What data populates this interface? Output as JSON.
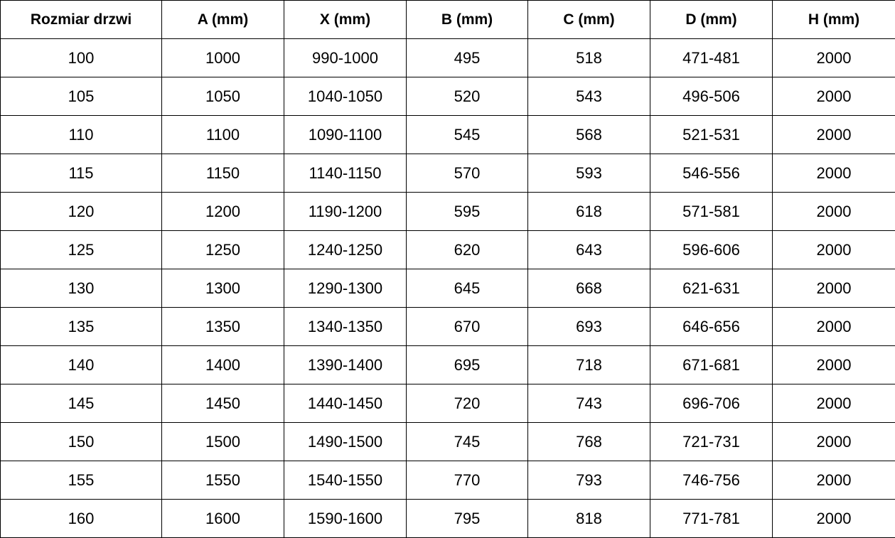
{
  "table": {
    "headers": [
      "Rozmiar drzwi",
      "A (mm)",
      "X (mm)",
      "B (mm)",
      "C (mm)",
      "D (mm)",
      "H (mm)"
    ],
    "rows": [
      [
        "100",
        "1000",
        "990-1000",
        "495",
        "518",
        "471-481",
        "2000"
      ],
      [
        "105",
        "1050",
        "1040-1050",
        "520",
        "543",
        "496-506",
        "2000"
      ],
      [
        "110",
        "1100",
        "1090-1100",
        "545",
        "568",
        "521-531",
        "2000"
      ],
      [
        "115",
        "1150",
        "1140-1150",
        "570",
        "593",
        "546-556",
        "2000"
      ],
      [
        "120",
        "1200",
        "1190-1200",
        "595",
        "618",
        "571-581",
        "2000"
      ],
      [
        "125",
        "1250",
        "1240-1250",
        "620",
        "643",
        "596-606",
        "2000"
      ],
      [
        "130",
        "1300",
        "1290-1300",
        "645",
        "668",
        "621-631",
        "2000"
      ],
      [
        "135",
        "1350",
        "1340-1350",
        "670",
        "693",
        "646-656",
        "2000"
      ],
      [
        "140",
        "1400",
        "1390-1400",
        "695",
        "718",
        "671-681",
        "2000"
      ],
      [
        "145",
        "1450",
        "1440-1450",
        "720",
        "743",
        "696-706",
        "2000"
      ],
      [
        "150",
        "1500",
        "1490-1500",
        "745",
        "768",
        "721-731",
        "2000"
      ],
      [
        "155",
        "1550",
        "1540-1550",
        "770",
        "793",
        "746-756",
        "2000"
      ],
      [
        "160",
        "1600",
        "1590-1600",
        "795",
        "818",
        "771-781",
        "2000"
      ]
    ]
  }
}
